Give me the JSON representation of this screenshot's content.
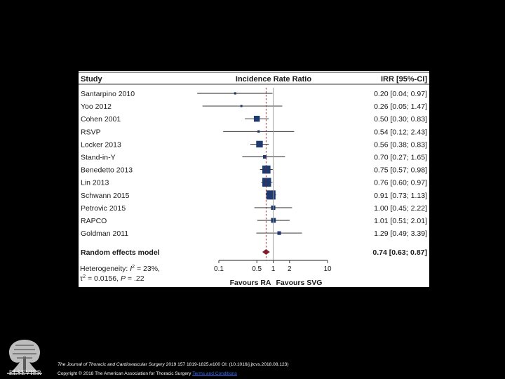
{
  "chart_data": {
    "type": "forest",
    "header": {
      "study": "Study",
      "axis_title": "Incidence Rate Ratio",
      "ci_col": "IRR [95%-CI]"
    },
    "rows": [
      {
        "study": "Santarpino 2010",
        "irr": 0.2,
        "lo": 0.04,
        "hi": 0.97,
        "label": "0.20 [0.04; 0.97]",
        "weight": 1.2
      },
      {
        "study": "Yoo 2012",
        "irr": 0.26,
        "lo": 0.05,
        "hi": 1.47,
        "label": "0.26 [0.05; 1.47]",
        "weight": 1.0
      },
      {
        "study": "Cohen 2001",
        "irr": 0.5,
        "lo": 0.3,
        "hi": 0.83,
        "label": "0.50 [0.30; 0.83]",
        "weight": 8.5
      },
      {
        "study": "RSVP",
        "irr": 0.54,
        "lo": 0.12,
        "hi": 2.43,
        "label": "0.54 [0.12; 2.43]",
        "weight": 1.3
      },
      {
        "study": "Locker 2013",
        "irr": 0.56,
        "lo": 0.38,
        "hi": 0.83,
        "label": "0.56 [0.38; 0.83]",
        "weight": 10.5
      },
      {
        "study": "Stand-in-Y",
        "irr": 0.7,
        "lo": 0.27,
        "hi": 1.65,
        "label": "0.70 [0.27; 1.65]",
        "weight": 3.0
      },
      {
        "study": "Benedetto 2013",
        "irr": 0.75,
        "lo": 0.57,
        "hi": 0.98,
        "label": "0.75 [0.57; 0.98]",
        "weight": 16.0
      },
      {
        "study": "Lin 2013",
        "irr": 0.76,
        "lo": 0.6,
        "hi": 0.97,
        "label": "0.76 [0.60; 0.97]",
        "weight": 18.5
      },
      {
        "study": "Schwann 2015",
        "irr": 0.91,
        "lo": 0.73,
        "hi": 1.13,
        "label": "0.91 [0.73; 1.13]",
        "weight": 20.0
      },
      {
        "study": "Petrovic 2015",
        "irr": 1.0,
        "lo": 0.45,
        "hi": 2.22,
        "label": "1.00 [0.45; 2.22]",
        "weight": 4.5
      },
      {
        "study": "RAPCO",
        "irr": 1.01,
        "lo": 0.51,
        "hi": 2.01,
        "label": "1.01 [0.51; 2.01]",
        "weight": 5.5
      },
      {
        "study": "Goldman 2011",
        "irr": 1.29,
        "lo": 0.49,
        "hi": 3.39,
        "label": "1.29 [0.49; 3.39]",
        "weight": 3.2
      }
    ],
    "summary": {
      "label": "Random effects model",
      "irr": 0.74,
      "lo": 0.63,
      "hi": 0.87,
      "value_label": "0.74 [0.63; 0.87]"
    },
    "heterogeneity": {
      "line1_prefix": "Heterogeneity: ",
      "i2_symbol": "I",
      "i2_sup": "2",
      "i2_value": " = 23%,",
      "tau_symbol": "τ",
      "tau_sup": "2",
      "tau_value": " = 0.0156, ",
      "p_symbol": "P",
      "p_value": " = .22"
    },
    "x_axis": {
      "scale": "log",
      "xlim": [
        0.1,
        10
      ],
      "ticks": [
        {
          "value": 0.1,
          "label": "0.1"
        },
        {
          "value": 0.5,
          "label": "0.5"
        },
        {
          "value": 1,
          "label": "1"
        },
        {
          "value": 2,
          "label": "2"
        },
        {
          "value": 10,
          "label": "10"
        }
      ],
      "reference_line": 1,
      "left_label": "Favours RA",
      "right_label": "Favours SVG"
    },
    "colors": {
      "square": "#1e3a6e",
      "line": "#222222",
      "diamond": "#7a1f2b",
      "summary_line": "#8a1f2b",
      "reference": "#9a9a9a"
    }
  },
  "footer": {
    "publisher": "ELSEVIER",
    "journal": "The Journal of Thoracic and Cardiovascular Surgery",
    "citation": " 2019 157 1819-1825.e100 OI: (10.1016/j.jtcvs.2018.08.123)",
    "copyright": "Copyright © 2018 The American Association for Thoracic Surgery ",
    "terms": "Terms and Conditions"
  }
}
